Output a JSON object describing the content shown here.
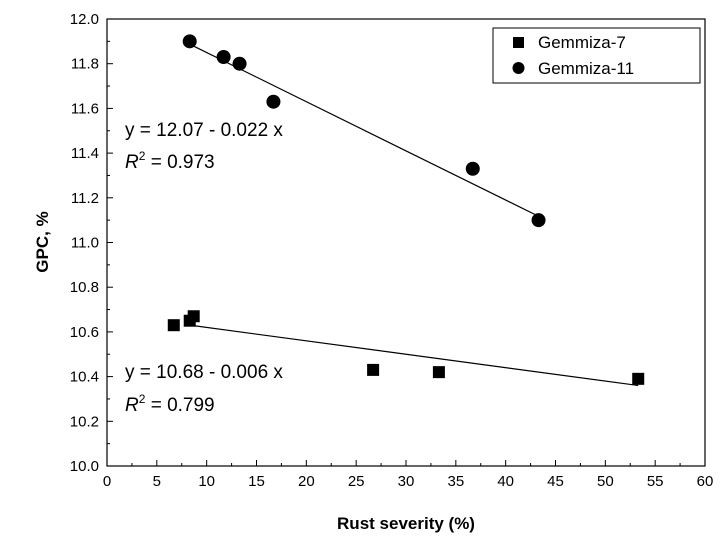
{
  "chart_data": {
    "type": "scatter",
    "xlabel": "Rust severity (%)",
    "ylabel": "GPC, %",
    "xlim": [
      0,
      60
    ],
    "ylim": [
      10.0,
      12.0
    ],
    "x_major_step": 5,
    "y_major_step": 0.2,
    "x_ticks": [
      "0",
      "5",
      "10",
      "15",
      "20",
      "25",
      "30",
      "35",
      "40",
      "45",
      "50",
      "55",
      "60"
    ],
    "y_ticks": [
      "10.0",
      "10.2",
      "10.4",
      "10.6",
      "10.8",
      "11.0",
      "11.2",
      "11.4",
      "11.6",
      "11.8",
      "12.0"
    ],
    "grid": false,
    "legend_position": "top-right",
    "series": [
      {
        "name": "Gemmiza-7",
        "marker": "square",
        "color": "#000000",
        "points": [
          {
            "x": 6.7,
            "y": 10.63
          },
          {
            "x": 8.3,
            "y": 10.65
          },
          {
            "x": 8.7,
            "y": 10.67
          },
          {
            "x": 26.7,
            "y": 10.43
          },
          {
            "x": 33.3,
            "y": 10.42
          },
          {
            "x": 53.3,
            "y": 10.39
          }
        ],
        "trendline": {
          "x_start": 8.3,
          "x_end": 53.3,
          "intercept": 10.68,
          "slope": -0.006
        },
        "equation": "y = 10.68 - 0.006 x",
        "r2_label": "R",
        "r2_exp": "2",
        "r2_value": " = 0.799"
      },
      {
        "name": "Gemmiza-11",
        "marker": "circle",
        "color": "#000000",
        "points": [
          {
            "x": 8.3,
            "y": 11.9
          },
          {
            "x": 11.7,
            "y": 11.83
          },
          {
            "x": 13.3,
            "y": 11.8
          },
          {
            "x": 16.7,
            "y": 11.63
          },
          {
            "x": 36.7,
            "y": 11.33
          },
          {
            "x": 43.3,
            "y": 11.1
          }
        ],
        "trendline": {
          "x_start": 8.3,
          "x_end": 43.3,
          "intercept": 12.07,
          "slope": -0.022
        },
        "equation": "y = 12.07 - 0.022 x",
        "r2_label": "R",
        "r2_exp": "2",
        "r2_value": " = 0.973"
      }
    ]
  }
}
